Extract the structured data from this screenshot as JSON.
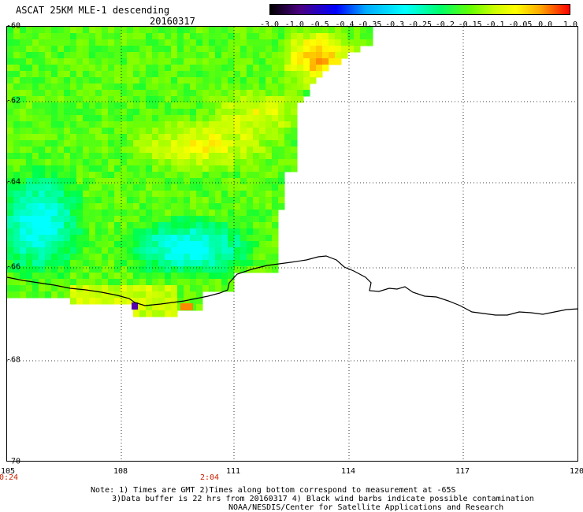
{
  "header": {
    "title": "ASCAT 25KM MLE-1 descending",
    "date": "20160317"
  },
  "colorbar": {
    "ticks": [
      "-3.0",
      "-1.0",
      "-0.5",
      "-0.4",
      "-0.35",
      "-0.3",
      "-0.25",
      "-0.2",
      "-0.15",
      "-0.1",
      "-0.05",
      "0.0",
      "1.0"
    ],
    "colors": [
      "#000000",
      "#4b0082",
      "#0000ff",
      "#00aaff",
      "#00ffff",
      "#00ff66",
      "#66ff00",
      "#ccff00",
      "#ffff00",
      "#ffaa00",
      "#ff5500",
      "#ff0000"
    ]
  },
  "map": {
    "lat_labels": [
      "-60",
      "-62",
      "-64",
      "-66",
      "-68",
      "-70"
    ],
    "lon_labels": [
      "105",
      "108",
      "111",
      "114",
      "117",
      "120"
    ],
    "times": [
      "0:24",
      "2:04"
    ]
  },
  "notes": {
    "line1": "Note: 1) Times are GMT 2)Times along bottom correspond to measurement at -65S",
    "line2": "3)Data buffer is 22 hrs from 20160317 4) Black wind barbs indicate possible contamination",
    "line3": "NOAA/NESDIS/Center for Satellite Applications and Research"
  }
}
